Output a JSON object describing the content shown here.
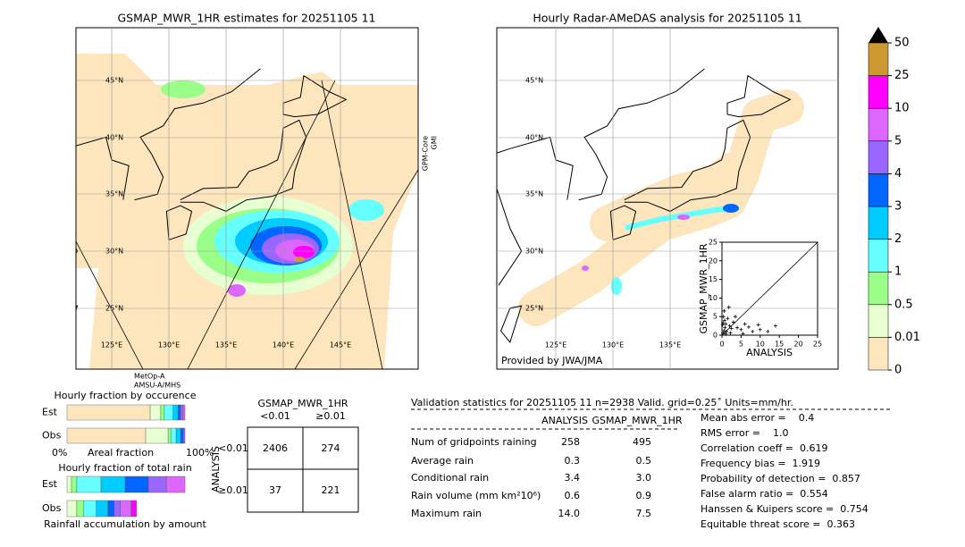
{
  "maps": {
    "left": {
      "title": "GSMAP_MWR_1HR estimates for 20251105 11",
      "lat_labels": [
        "45°N",
        "40°N",
        "35°N",
        "30°N",
        "25°N"
      ],
      "lon_labels": [
        "125°E",
        "130°E",
        "135°E",
        "140°E",
        "145°E"
      ],
      "sensor_bottom": [
        "MetOp-A",
        "AMSU-A/MHS"
      ],
      "sensor_right": [
        "GPM-Core",
        "GMI"
      ]
    },
    "right": {
      "title": "Hourly Radar-AMeDAS analysis for 20251105 11",
      "lat_labels": [
        "45°N",
        "40°N",
        "35°N",
        "30°N",
        "25°N"
      ],
      "lon_labels": [
        "125°E",
        "130°E",
        "135°E"
      ],
      "credit": "Provided by JWA/JMA"
    }
  },
  "colorbar": {
    "ticks": [
      0,
      0.01,
      0.5,
      1,
      2,
      3,
      4,
      5,
      10,
      25,
      50
    ],
    "colors": [
      "#fde6bd",
      "#e8ffd2",
      "#99ff88",
      "#66ffff",
      "#00ccff",
      "#0066ff",
      "#9966ff",
      "#dd66ff",
      "#ff00ff",
      "#cc9933"
    ],
    "extend_color": "#000000"
  },
  "scatter": {
    "xlabel": "ANALYSIS",
    "ylabel": "GSMAP_MWR_1HR",
    "xlim": [
      0,
      25
    ],
    "ylim": [
      0,
      25
    ],
    "xticks": [
      0,
      5,
      10,
      15,
      20,
      25
    ],
    "yticks": [
      0,
      5,
      10,
      15,
      20,
      25
    ],
    "points": [
      [
        0.3,
        0.5
      ],
      [
        0.5,
        1.2
      ],
      [
        0.8,
        2
      ],
      [
        1,
        3
      ],
      [
        1.2,
        1
      ],
      [
        1.5,
        4.5
      ],
      [
        2,
        2.5
      ],
      [
        0.4,
        5
      ],
      [
        0.6,
        6.5
      ],
      [
        2.5,
        1.8
      ],
      [
        3,
        3.5
      ],
      [
        1,
        0.3
      ],
      [
        0.2,
        2.8
      ],
      [
        4,
        2
      ],
      [
        5,
        1.5
      ],
      [
        6,
        3
      ],
      [
        7,
        2.2
      ],
      [
        8,
        1
      ],
      [
        9.5,
        2.8
      ],
      [
        10,
        1.5
      ],
      [
        14,
        2.5
      ],
      [
        3.5,
        5
      ],
      [
        1.8,
        7.5
      ],
      [
        0.7,
        4
      ],
      [
        2.2,
        0.6
      ],
      [
        5.5,
        0.4
      ],
      [
        0.3,
        3.3
      ],
      [
        12,
        1
      ]
    ]
  },
  "occurrence": {
    "title": "Hourly fraction by occurence",
    "rows": [
      {
        "label": "Est",
        "values": [
          70.5,
          9,
          3,
          7.5,
          4,
          2.3,
          2.2,
          1.5
        ],
        "colors": [
          "#fde6bd",
          "#e8ffd2",
          "#99ff88",
          "#66ffff",
          "#00ccff",
          "#0066ff",
          "#9966ff",
          "#dd66ff"
        ]
      },
      {
        "label": "Obs",
        "values": [
          66.7,
          19,
          2.3,
          4.5,
          3.8,
          2.3,
          1.4
        ],
        "colors": [
          "#fde6bd",
          "#e8ffd2",
          "#99ff88",
          "#66ffff",
          "#00ccff",
          "#0066ff",
          "#9966ff"
        ]
      }
    ],
    "axis_left": "0%",
    "axis_label": "Areal fraction",
    "axis_right": "100%"
  },
  "total_rain": {
    "title": "Hourly fraction of total rain",
    "rows": [
      {
        "label": "Est",
        "values": [
          3.8,
          4.5,
          20.5,
          20.5,
          19.7,
          15.2,
          15.8
        ],
        "colors": [
          "#e8ffd2",
          "#99ff88",
          "#66ffff",
          "#00ccff",
          "#0066ff",
          "#9966ff",
          "#dd66ff"
        ]
      },
      {
        "label": "Obs",
        "values": [
          8.3,
          6,
          10.6,
          9.8,
          5.3,
          5.3,
          9.1,
          4.5
        ],
        "colors": [
          "#e8ffd2",
          "#99ff88",
          "#66ffff",
          "#00ccff",
          "#0066ff",
          "#9966ff",
          "#dd66ff",
          "#ff00ff"
        ]
      }
    ],
    "footer": "Rainfall accumulation by amount"
  },
  "contingency": {
    "title": "GSMAP_MWR_1HR",
    "col_labels": [
      "<0.01",
      "≥0.01"
    ],
    "row_axis_label": "ANALYSIS",
    "row_labels": [
      "<0.01",
      "≥0.01"
    ],
    "cells": [
      [
        "2406",
        "274"
      ],
      [
        "37",
        "221"
      ]
    ]
  },
  "validation": {
    "header": "Validation statistics for 20251105 11  n=2938 Valid. grid=0.25˚ Units=mm/hr.",
    "columns": [
      "ANALYSIS",
      "GSMAP_MWR_1HR"
    ],
    "rows": [
      {
        "label": "Num of gridpoints raining",
        "values": [
          "258",
          "495"
        ]
      },
      {
        "label": "Average rain",
        "values": [
          "0.3",
          "0.5"
        ]
      },
      {
        "label": "Conditional rain",
        "values": [
          "3.4",
          "3.0"
        ]
      },
      {
        "label": "Rain volume (mm km²10⁶)",
        "values": [
          "0.6",
          "0.9"
        ]
      },
      {
        "label": "Maximum rain",
        "values": [
          "14.0",
          "7.5"
        ]
      }
    ],
    "scores": [
      "Mean abs error =    0.4",
      "RMS error =    1.0",
      "Correlation coeff =  0.619",
      "Frequency bias =  1.919",
      "Probability of detection =  0.857",
      "False alarm ratio =  0.554",
      "Hanssen & Kuipers score =  0.754",
      "Equitable threat score =  0.363"
    ]
  }
}
